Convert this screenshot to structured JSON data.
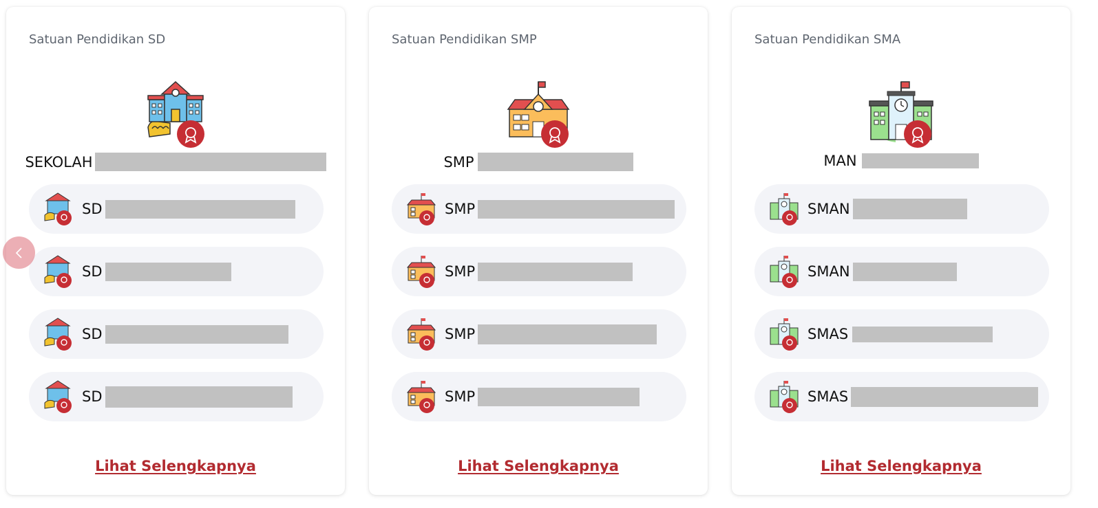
{
  "cards": [
    {
      "title": "Satuan Pendidikan SD",
      "featured_prefix": "SEKOLAH",
      "items": [
        {
          "prefix": "SD"
        },
        {
          "prefix": "SD"
        },
        {
          "prefix": "SD"
        },
        {
          "prefix": "SD"
        }
      ],
      "more_label": "Lihat Selengkapnya",
      "icon": "school-building-sd-icon"
    },
    {
      "title": "Satuan Pendidikan SMP",
      "featured_prefix": "SMP",
      "items": [
        {
          "prefix": "SMP"
        },
        {
          "prefix": "SMP"
        },
        {
          "prefix": "SMP"
        },
        {
          "prefix": "SMP"
        }
      ],
      "more_label": "Lihat Selengkapnya",
      "icon": "school-building-smp-icon"
    },
    {
      "title": "Satuan Pendidikan SMA",
      "featured_prefix": "MAN",
      "items": [
        {
          "prefix": "SMAN"
        },
        {
          "prefix": "SMAN"
        },
        {
          "prefix": "SMAS"
        },
        {
          "prefix": "SMAS"
        }
      ],
      "more_label": "Lihat Selengkapnya",
      "icon": "school-building-sma-icon"
    }
  ],
  "colors": {
    "accent": "#b22b30",
    "badge": "#c62e34",
    "pill_bg": "#f3f4f8",
    "redaction": "#c1c1c1"
  },
  "nav": {
    "prev_icon": "chevron-left-icon"
  }
}
